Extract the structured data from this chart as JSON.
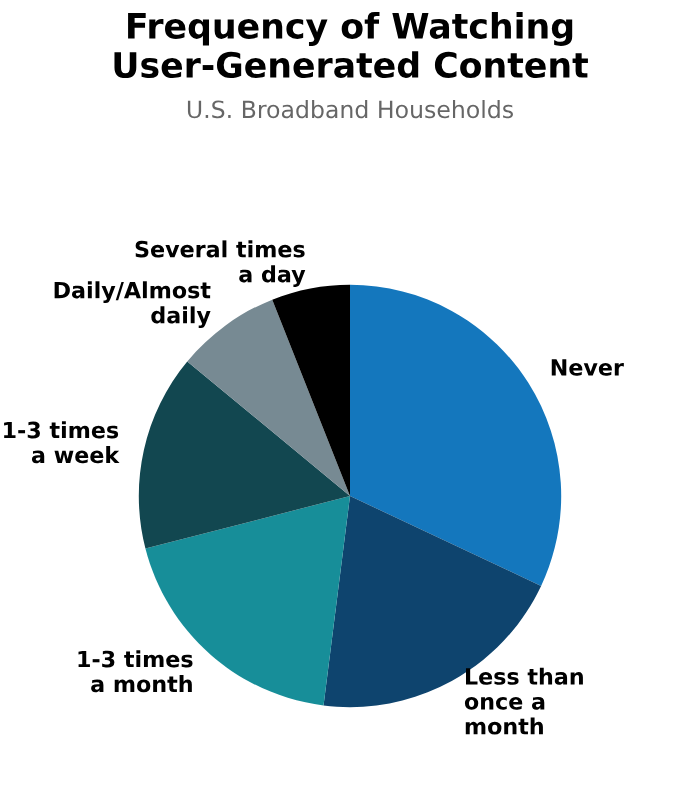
{
  "chart_data": {
    "type": "pie",
    "title": "Frequency of Watching\nUser-Generated Content",
    "subtitle": "U.S. Broadband Households",
    "categories": [
      "Never",
      "Less than\nonce a\nmonth",
      "1-3 times\na month",
      "1-3 times\na week",
      "Daily/Almost\ndaily",
      "Several times\na day"
    ],
    "values": [
      32,
      20,
      19,
      15,
      8,
      6
    ],
    "colors": [
      "#1477bd",
      "#0e446e",
      "#178e99",
      "#124750",
      "#778a93",
      "#000000"
    ]
  }
}
